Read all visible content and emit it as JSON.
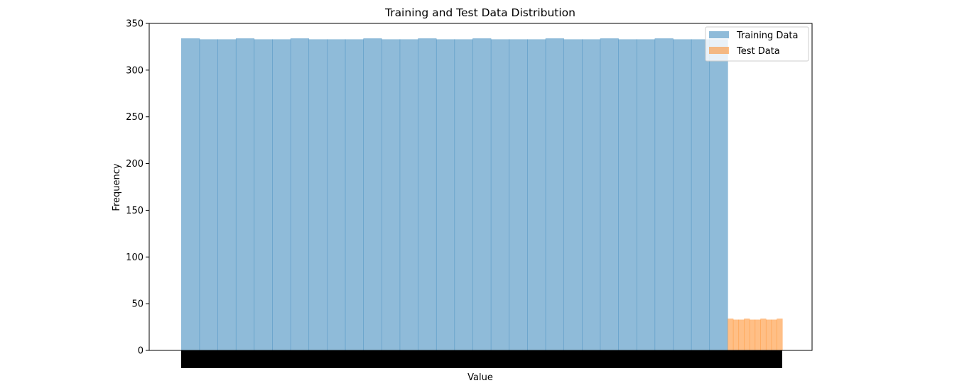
{
  "chart_data": {
    "type": "bar",
    "title": "Training and Test Data Distribution",
    "xlabel": "Value",
    "ylabel": "Frequency",
    "ylim": [
      0,
      350
    ],
    "yticks": [
      0,
      50,
      100,
      150,
      200,
      250,
      300,
      350
    ],
    "grid": false,
    "legend_position": "top-right",
    "series": [
      {
        "name": "Training Data",
        "color": "#1f77b4",
        "opacity": 0.5,
        "bins": [
          0,
          30
        ],
        "values": [
          334,
          333,
          333,
          334,
          333,
          333,
          334,
          333,
          333,
          333,
          334,
          333,
          333,
          334,
          333,
          333,
          334,
          333,
          333,
          333,
          334,
          333,
          333,
          334,
          333,
          333,
          334,
          333,
          333,
          333
        ]
      },
      {
        "name": "Test Data",
        "color": "#ff7f0e",
        "opacity": 0.5,
        "bins": [
          30,
          33
        ],
        "values": [
          34,
          33,
          33,
          34,
          33,
          33,
          34,
          33,
          33,
          34
        ]
      }
    ]
  }
}
